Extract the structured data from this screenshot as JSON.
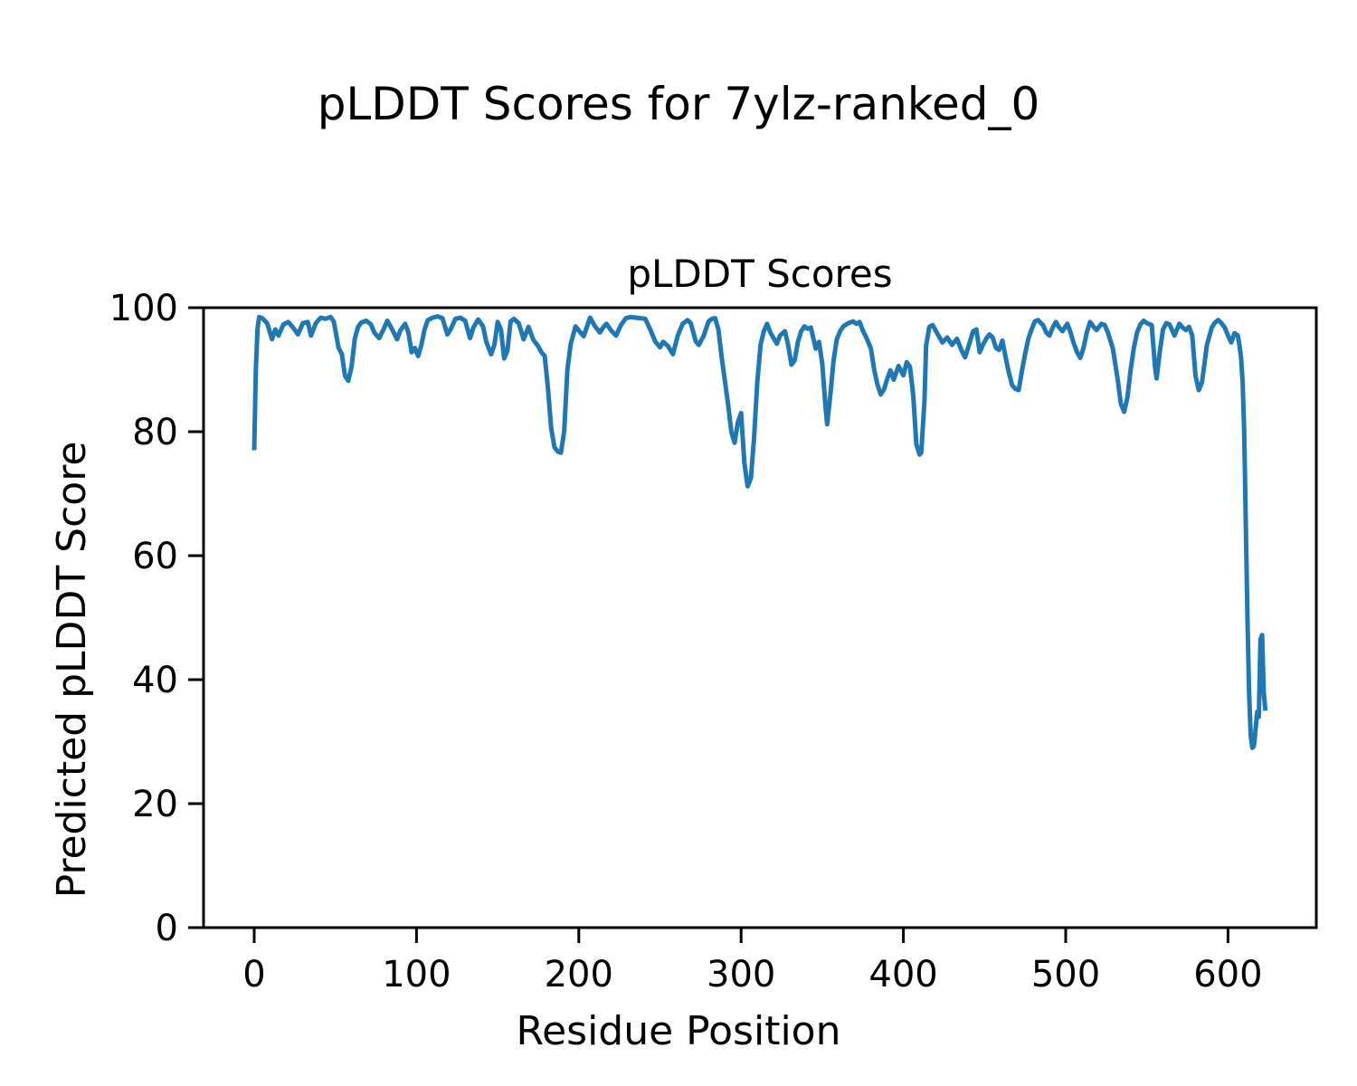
{
  "figure": {
    "suptitle": "pLDDT Scores for 7ylz-ranked_0"
  },
  "chart_data": {
    "type": "line",
    "title": "pLDDT Scores",
    "xlabel": "Residue Position",
    "ylabel": "Predicted pLDDT Score",
    "x_ticks": [
      0,
      100,
      200,
      300,
      400,
      500,
      600
    ],
    "y_ticks": [
      0,
      20,
      40,
      60,
      80,
      100
    ],
    "xlim": [
      -31.2,
      654.4
    ],
    "ylim": [
      0,
      100
    ],
    "grid": false,
    "legend": false,
    "line_color": "#1f77b4",
    "axis_color": "#000000",
    "background_color": "#ffffff",
    "series": [
      {
        "name": "pLDDT",
        "x": [
          0,
          1,
          2,
          3,
          5,
          8,
          11,
          13,
          15,
          18,
          21,
          24,
          27,
          30,
          33,
          35,
          38,
          41,
          44,
          47,
          49,
          52,
          54,
          56,
          58,
          60,
          62,
          64,
          66,
          69,
          72,
          74,
          77,
          80,
          82,
          85,
          88,
          90,
          93,
          95,
          97,
          99,
          101,
          103,
          105,
          107,
          110,
          113,
          116,
          119,
          121,
          124,
          127,
          130,
          133,
          135,
          138,
          141,
          143,
          146,
          148,
          150,
          152,
          154,
          156,
          158,
          160,
          163,
          166,
          169,
          172,
          175,
          177,
          179,
          181,
          183,
          185,
          187,
          189,
          191,
          193,
          195,
          198,
          201,
          203,
          207,
          210,
          213,
          215,
          217,
          220,
          223,
          226,
          229,
          232,
          235,
          238,
          241,
          244,
          247,
          250,
          252,
          255,
          258,
          261,
          264,
          267,
          269,
          272,
          274,
          277,
          280,
          282,
          284,
          286,
          288,
          290,
          292,
          294,
          296,
          298,
          300,
          302,
          304,
          306,
          308,
          310,
          312,
          314,
          316,
          318,
          320,
          322,
          324,
          327,
          329,
          331,
          333,
          335,
          337,
          339,
          341,
          343,
          346,
          348,
          350,
          352,
          353,
          355,
          357,
          359,
          361,
          363,
          366,
          369,
          371,
          373,
          375,
          377,
          380,
          382,
          384,
          386,
          388,
          390,
          392,
          394,
          397,
          400,
          402,
          404,
          406,
          408,
          410,
          411,
          413,
          414,
          416,
          418,
          421,
          424,
          427,
          430,
          433,
          436,
          438,
          441,
          443,
          445,
          447,
          449,
          451,
          453,
          455,
          457,
          459,
          461,
          463,
          465,
          467,
          469,
          471,
          473,
          475,
          477,
          479,
          481,
          483,
          486,
          488,
          490,
          492,
          494,
          496,
          498,
          501,
          503,
          505,
          507,
          509,
          511,
          513,
          515,
          517,
          519,
          522,
          524,
          526,
          529,
          532,
          534,
          536,
          538,
          540,
          542,
          544,
          546,
          548,
          550,
          553,
          555,
          556,
          558,
          560,
          562,
          564,
          567,
          570,
          572,
          574,
          576,
          578,
          580,
          582,
          584,
          587,
          590,
          592,
          594,
          596,
          598,
          600,
          602,
          604,
          606,
          607,
          608,
          609,
          610,
          611,
          612,
          613,
          614,
          615,
          616,
          617,
          618,
          619,
          620,
          621,
          622,
          623
        ],
        "y": [
          77,
          90,
          96.5,
          98.5,
          98.3,
          97.5,
          94.9,
          96.5,
          95.5,
          97.3,
          97.7,
          96.8,
          95.7,
          97.5,
          97.7,
          95.5,
          97.5,
          98.4,
          98.2,
          98.5,
          97.8,
          93.5,
          92.5,
          89,
          88.2,
          90.5,
          95,
          96.9,
          97.6,
          97.9,
          97.3,
          96,
          95.1,
          96.7,
          97.9,
          96.5,
          94.9,
          96.3,
          97.4,
          96,
          92.8,
          93.5,
          92.2,
          94,
          96.5,
          98,
          98.4,
          98.6,
          98.3,
          95.7,
          96.5,
          98.2,
          98.4,
          97.9,
          95.1,
          96.8,
          98.1,
          97,
          94.5,
          92.5,
          94,
          97.7,
          96.5,
          91.8,
          93,
          97.8,
          98.2,
          97.5,
          94.9,
          96.9,
          94.8,
          93.8,
          92.8,
          92.2,
          87,
          80.5,
          77.5,
          76.8,
          76.6,
          80,
          90,
          94.1,
          97,
          96,
          95.4,
          98.4,
          97,
          96,
          96.8,
          97.4,
          96.3,
          95.5,
          97.2,
          98.3,
          98.5,
          98.4,
          98.3,
          98.2,
          96.5,
          94.6,
          93.6,
          94.5,
          93.8,
          92.5,
          95.5,
          97.4,
          98,
          97.5,
          94.6,
          94,
          95.5,
          97.8,
          98.2,
          98.3,
          96.5,
          92,
          88.3,
          84.4,
          80,
          78.2,
          81.5,
          83,
          75,
          71.2,
          72.5,
          79,
          88,
          94,
          96.2,
          97.4,
          96,
          95.1,
          94.2,
          95.5,
          96.2,
          94,
          90.8,
          91.5,
          94.5,
          96.2,
          97,
          96.6,
          96.8,
          93.4,
          94.5,
          91,
          84,
          81.2,
          86,
          91.5,
          94.9,
          96.2,
          97,
          97.5,
          97.8,
          97.4,
          97.7,
          96.3,
          95.3,
          93.4,
          90,
          87.6,
          86,
          86.8,
          88.5,
          89.9,
          88.4,
          90.6,
          89.1,
          91.2,
          90.5,
          86,
          78,
          76.3,
          76.6,
          85,
          93.9,
          96.9,
          97.2,
          95.8,
          94.4,
          95.2,
          94,
          95,
          93,
          92,
          94.5,
          96.2,
          96.5,
          92.8,
          94,
          95,
          95.7,
          95.2,
          93.5,
          93.2,
          94.7,
          92,
          89.5,
          87.5,
          86.9,
          86.7,
          89.8,
          92.5,
          95,
          96.5,
          97.8,
          98,
          97.2,
          96,
          95.5,
          96.8,
          97.7,
          96.8,
          96.2,
          97.4,
          96,
          94.2,
          92.8,
          91.9,
          93.5,
          96,
          97.7,
          97,
          96.4,
          97.4,
          97.2,
          96,
          93.5,
          88.5,
          84.5,
          83.2,
          85.5,
          90,
          93.5,
          96,
          97.3,
          97.9,
          97.5,
          97.2,
          90.5,
          88.6,
          93,
          96.5,
          97.5,
          97.3,
          95.5,
          97.4,
          96.8,
          96.4,
          96.9,
          95.5,
          89,
          86.7,
          88,
          94,
          96.8,
          97.6,
          98,
          97.5,
          96.8,
          95.5,
          94.4,
          95.9,
          95.5,
          94,
          92,
          88,
          80,
          65,
          50,
          38,
          31,
          29,
          29.3,
          32,
          34.8,
          34,
          46.5,
          47.2,
          38,
          35
        ]
      }
    ]
  }
}
